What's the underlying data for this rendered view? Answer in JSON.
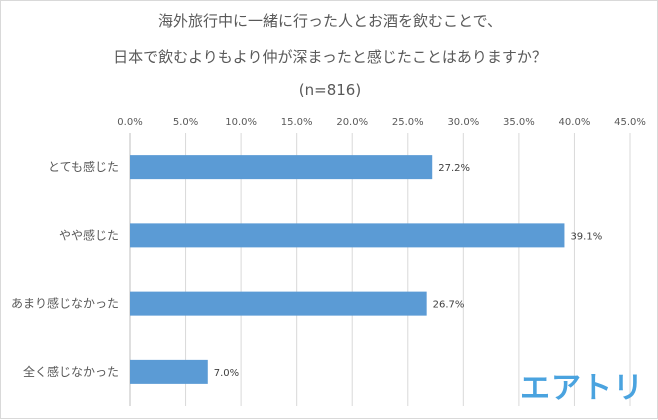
{
  "title": {
    "line1": "海外旅行中に一緒に行った人とお酒を飲むことで、",
    "line2": "日本で飲むよりもより仲が深まったと感じたことはありますか？",
    "line3": "(n=816)"
  },
  "chart_data": {
    "type": "bar",
    "orientation": "horizontal",
    "categories": [
      "とても感じた",
      "やや感じた",
      "あまり感じなかった",
      "全く感じなかった"
    ],
    "values": [
      27.2,
      39.1,
      26.7,
      7.0
    ],
    "value_labels": [
      "27.2%",
      "39.1%",
      "26.7%",
      "7.0%"
    ],
    "xlim": [
      0,
      45
    ],
    "xticks": [
      0,
      5,
      10,
      15,
      20,
      25,
      30,
      35,
      40,
      45
    ],
    "xtick_labels": [
      "0.0%",
      "5.0%",
      "10.0%",
      "15.0%",
      "20.0%",
      "25.0%",
      "30.0%",
      "35.0%",
      "40.0%",
      "45.0%"
    ],
    "x_axis_position": "top",
    "grid": true,
    "bar_color": "#5b9bd5",
    "grid_color": "#d9d9d9"
  },
  "logo": {
    "text": "エアトリ",
    "color": "#4aa3df"
  }
}
